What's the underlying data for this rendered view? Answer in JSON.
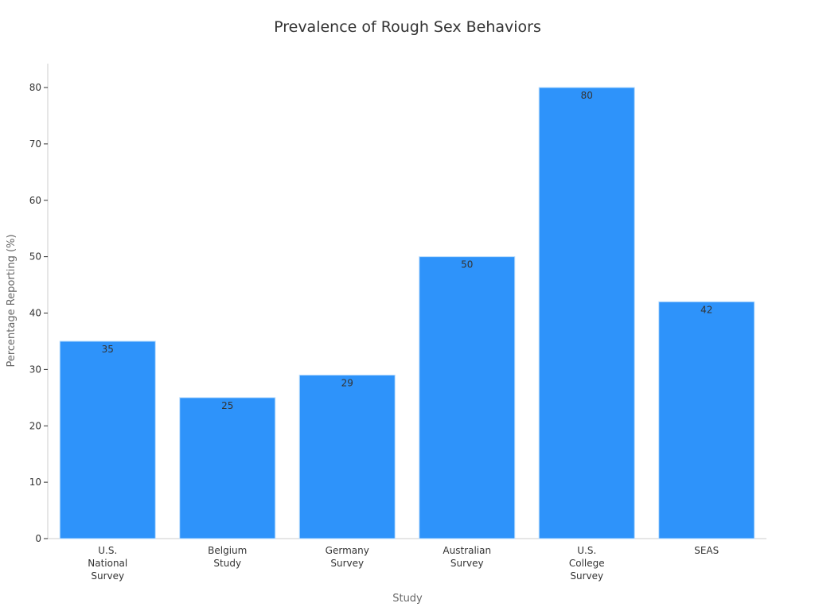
{
  "chart_data": {
    "type": "bar",
    "title": "Prevalence of Rough Sex Behaviors",
    "xlabel": "Study",
    "ylabel": "Percentage Reporting (%)",
    "categories": [
      [
        "U.S.",
        "National",
        "Survey"
      ],
      [
        "Belgium",
        "Study"
      ],
      [
        "Germany",
        "Survey"
      ],
      [
        "Australian",
        "Survey"
      ],
      [
        "U.S.",
        "College",
        "Survey"
      ],
      [
        "SEAS"
      ]
    ],
    "values": [
      35,
      25,
      29,
      50,
      80,
      42
    ],
    "ylim": [
      0,
      84
    ],
    "yticks": [
      0,
      10,
      20,
      30,
      40,
      50,
      60,
      70,
      80
    ],
    "grid": false,
    "bar_color": "#2e93fa",
    "bar_edge_color": "#b8dcfd"
  }
}
